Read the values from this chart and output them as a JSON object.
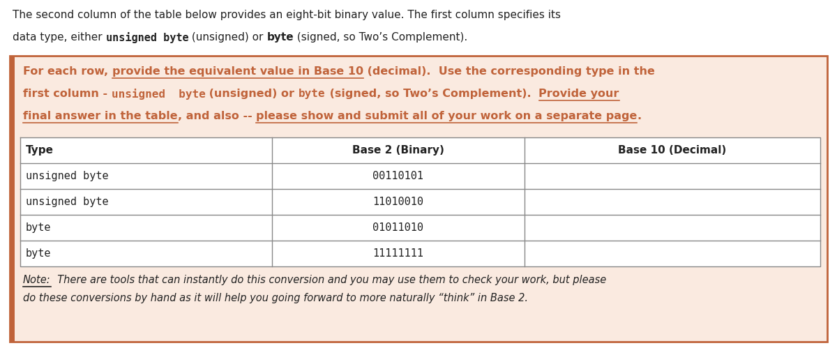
{
  "bg_color": "#FAEAE0",
  "border_color": "#C0633A",
  "text_color_dark": "#222222",
  "text_color_orange": "#C0633A",
  "table_border_color": "#888888",
  "figsize": [
    12.0,
    4.99
  ],
  "dpi": 100,
  "intro_line1": "The second column of the table below provides an eight-bit binary value. The first column specifies its",
  "intro_line2_parts": [
    {
      "text": "data type, either ",
      "bold": false,
      "mono": false
    },
    {
      "text": "unsigned byte",
      "bold": true,
      "mono": true
    },
    {
      "text": " (unsigned) or ",
      "bold": false,
      "mono": false
    },
    {
      "text": "byte",
      "bold": true,
      "mono": false
    },
    {
      "text": " (signed, so Two’s Complement).",
      "bold": false,
      "mono": false
    }
  ],
  "box_lines": [
    [
      {
        "text": "For each row, ",
        "bold": true,
        "mono": false,
        "underline": false
      },
      {
        "text": "provide the equivalent value in Base 10",
        "bold": true,
        "mono": false,
        "underline": true
      },
      {
        "text": " (decimal).  Use the corresponding type in the",
        "bold": true,
        "mono": false,
        "underline": false
      }
    ],
    [
      {
        "text": "first column - ",
        "bold": true,
        "mono": false,
        "underline": false
      },
      {
        "text": "unsigned  byte",
        "bold": true,
        "mono": true,
        "underline": false
      },
      {
        "text": " (unsigned) or ",
        "bold": true,
        "mono": false,
        "underline": false
      },
      {
        "text": "byte",
        "bold": true,
        "mono": true,
        "underline": false
      },
      {
        "text": " (signed, so Two’s Complement).  ",
        "bold": true,
        "mono": false,
        "underline": false
      },
      {
        "text": "Provide your",
        "bold": true,
        "mono": false,
        "underline": true
      }
    ],
    [
      {
        "text": "final answer in the table",
        "bold": true,
        "mono": false,
        "underline": true
      },
      {
        "text": ", and also -- ",
        "bold": true,
        "mono": false,
        "underline": false
      },
      {
        "text": "please show and submit all of your work on a separate page",
        "bold": true,
        "mono": false,
        "underline": true
      },
      {
        "text": ".",
        "bold": true,
        "mono": false,
        "underline": false
      }
    ]
  ],
  "table_headers": [
    "Type",
    "Base 2 (Binary)",
    "Base 10 (Decimal)"
  ],
  "table_rows": [
    [
      "unsigned byte",
      "00110101",
      ""
    ],
    [
      "unsigned byte",
      "11010010",
      ""
    ],
    [
      "byte",
      "01011010",
      ""
    ],
    [
      "byte",
      "11111111",
      ""
    ]
  ],
  "note_parts_line1": [
    {
      "text": "Note:",
      "italic": true,
      "underline": true
    },
    {
      "text": "  There are tools that can instantly do this conversion and you may use them to check your work, but please",
      "italic": true,
      "underline": false
    }
  ],
  "note_line2": "do these conversions by hand as it will help you going forward to more naturally “think” in Base 2."
}
